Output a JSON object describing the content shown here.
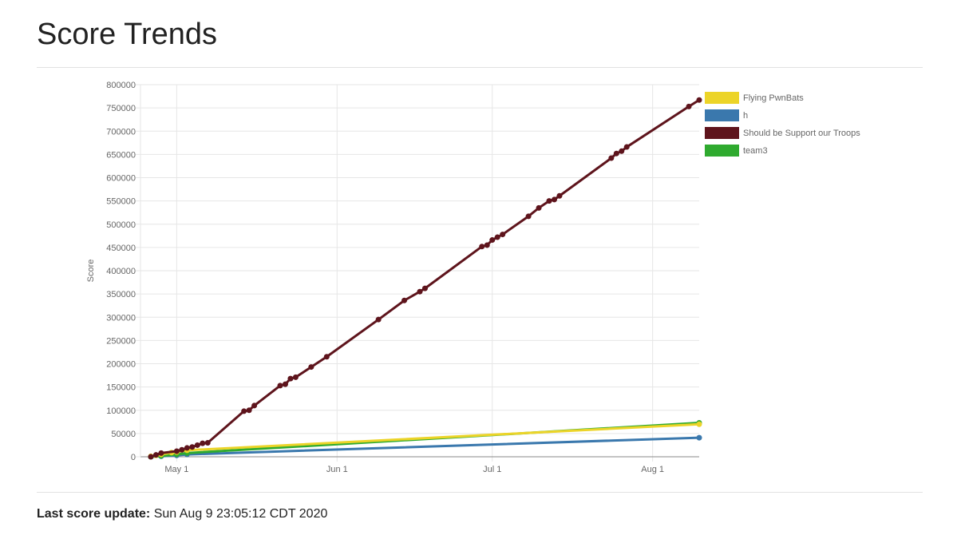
{
  "page": {
    "title": "Score Trends",
    "footer_label": "Last score update:",
    "footer_value": "Sun Aug 9 23:05:12 CDT 2020"
  },
  "chart_data": {
    "type": "line",
    "ylabel": "Score",
    "xlabel": "",
    "ylim": [
      0,
      800000
    ],
    "yticks": [
      0,
      50000,
      100000,
      150000,
      200000,
      250000,
      300000,
      350000,
      400000,
      450000,
      500000,
      550000,
      600000,
      650000,
      700000,
      750000,
      800000
    ],
    "xlim": [
      "2020-04-24",
      "2020-08-10"
    ],
    "xticks": [
      {
        "date": "2020-05-01",
        "label": "May 1"
      },
      {
        "date": "2020-06-01",
        "label": "Jun 1"
      },
      {
        "date": "2020-07-01",
        "label": "Jul 1"
      },
      {
        "date": "2020-08-01",
        "label": "Aug 1"
      }
    ],
    "grid": true,
    "legend_position": "right",
    "series": [
      {
        "name": "Flying PwnBats",
        "color": "#ecd428",
        "points": [
          [
            "2020-04-26",
            1000
          ],
          [
            "2020-04-27",
            3000
          ],
          [
            "2020-04-28",
            5000
          ],
          [
            "2020-04-30",
            9000
          ],
          [
            "2020-05-01",
            10000
          ],
          [
            "2020-05-03",
            14000
          ],
          [
            "2020-08-10",
            70000
          ]
        ]
      },
      {
        "name": "h",
        "color": "#3a78ad",
        "points": [
          [
            "2020-04-26",
            0
          ],
          [
            "2020-04-28",
            1000
          ],
          [
            "2020-05-01",
            3000
          ],
          [
            "2020-05-03",
            5000
          ],
          [
            "2020-08-10",
            41000
          ]
        ]
      },
      {
        "name": "Should be Support our Troops",
        "color": "#5e141c",
        "points": [
          [
            "2020-04-26",
            0
          ],
          [
            "2020-04-27",
            4000
          ],
          [
            "2020-04-28",
            8000
          ],
          [
            "2020-05-01",
            12000
          ],
          [
            "2020-05-02",
            15000
          ],
          [
            "2020-05-03",
            19000
          ],
          [
            "2020-05-04",
            21000
          ],
          [
            "2020-05-05",
            25000
          ],
          [
            "2020-05-06",
            29000
          ],
          [
            "2020-05-07",
            30000
          ],
          [
            "2020-05-14",
            98000
          ],
          [
            "2020-05-15",
            100000
          ],
          [
            "2020-05-16",
            110000
          ],
          [
            "2020-05-21",
            153000
          ],
          [
            "2020-05-22",
            156000
          ],
          [
            "2020-05-23",
            168000
          ],
          [
            "2020-05-24",
            171000
          ],
          [
            "2020-05-27",
            193000
          ],
          [
            "2020-05-30",
            215000
          ],
          [
            "2020-06-09",
            295000
          ],
          [
            "2020-06-14",
            336000
          ],
          [
            "2020-06-17",
            355000
          ],
          [
            "2020-06-18",
            362000
          ],
          [
            "2020-06-29",
            452000
          ],
          [
            "2020-06-30",
            455000
          ],
          [
            "2020-07-01",
            466000
          ],
          [
            "2020-07-02",
            472000
          ],
          [
            "2020-07-03",
            478000
          ],
          [
            "2020-07-08",
            517000
          ],
          [
            "2020-07-10",
            535000
          ],
          [
            "2020-07-12",
            550000
          ],
          [
            "2020-07-13",
            553000
          ],
          [
            "2020-07-14",
            561000
          ],
          [
            "2020-07-24",
            642000
          ],
          [
            "2020-07-25",
            652000
          ],
          [
            "2020-07-26",
            657000
          ],
          [
            "2020-07-27",
            666000
          ],
          [
            "2020-08-08",
            753000
          ],
          [
            "2020-08-10",
            767000
          ]
        ]
      },
      {
        "name": "team3",
        "color": "#2faa2f",
        "points": [
          [
            "2020-04-26",
            0
          ],
          [
            "2020-04-28",
            2000
          ],
          [
            "2020-05-01",
            5000
          ],
          [
            "2020-05-03",
            8000
          ],
          [
            "2020-08-10",
            73000
          ]
        ]
      }
    ]
  }
}
